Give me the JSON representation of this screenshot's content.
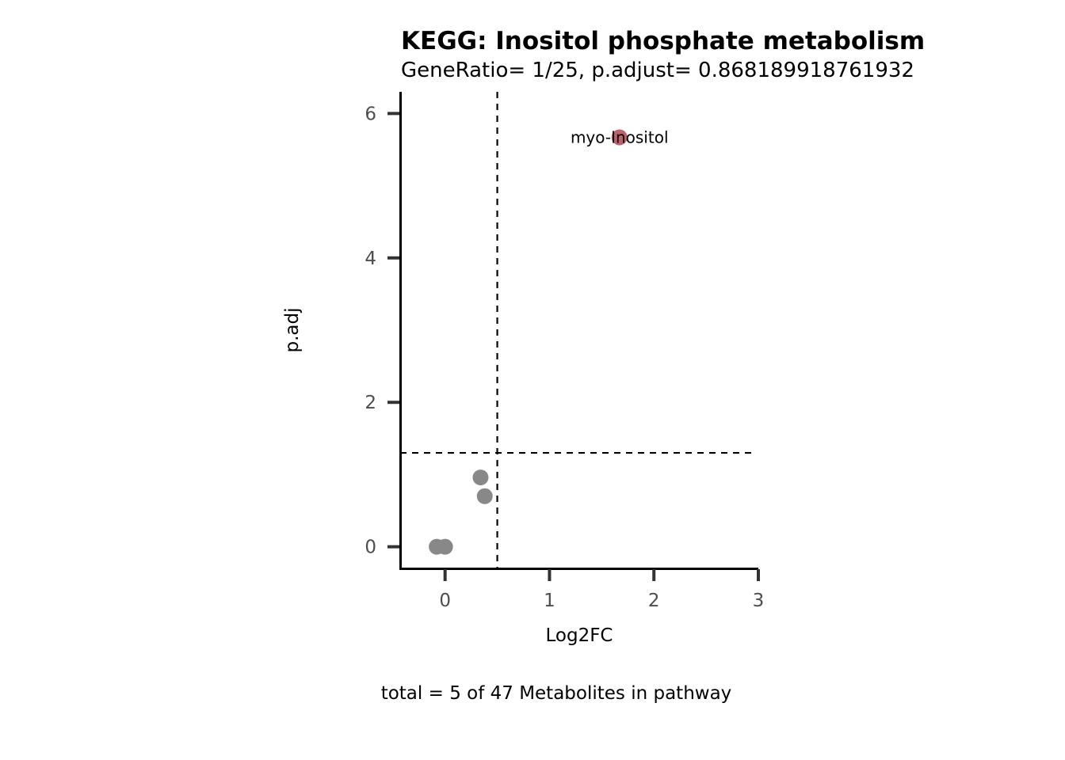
{
  "chart_data": {
    "type": "scatter",
    "title": "KEGG: Inositol phosphate metabolism",
    "subtitle": "GeneRatio= 1/25, p.adjust= 0.868189918761932",
    "xlabel": "Log2FC",
    "ylabel": "p.adj",
    "caption": "total = 5 of 47 Metabolites in pathway",
    "xlim": [
      -0.43,
      3
    ],
    "ylim": [
      -0.3,
      6.3
    ],
    "xticks": [
      0,
      1,
      2,
      3
    ],
    "yticks": [
      0,
      2,
      4,
      6
    ],
    "vline": 0.5,
    "hline": 1.3,
    "grid": false,
    "colors": {
      "significant": "#c0616f",
      "not_significant": "#888888",
      "axis": "#000000",
      "ticks": "#333333"
    },
    "points": [
      {
        "x": -0.08,
        "y": 0.0,
        "significant": false,
        "label": ""
      },
      {
        "x": 0.0,
        "y": 0.0,
        "significant": false,
        "label": ""
      },
      {
        "x": 0.34,
        "y": 0.96,
        "significant": false,
        "label": ""
      },
      {
        "x": 0.38,
        "y": 0.7,
        "significant": false,
        "label": ""
      },
      {
        "x": 1.67,
        "y": 5.67,
        "significant": true,
        "label": "myo-Inositol"
      }
    ]
  }
}
